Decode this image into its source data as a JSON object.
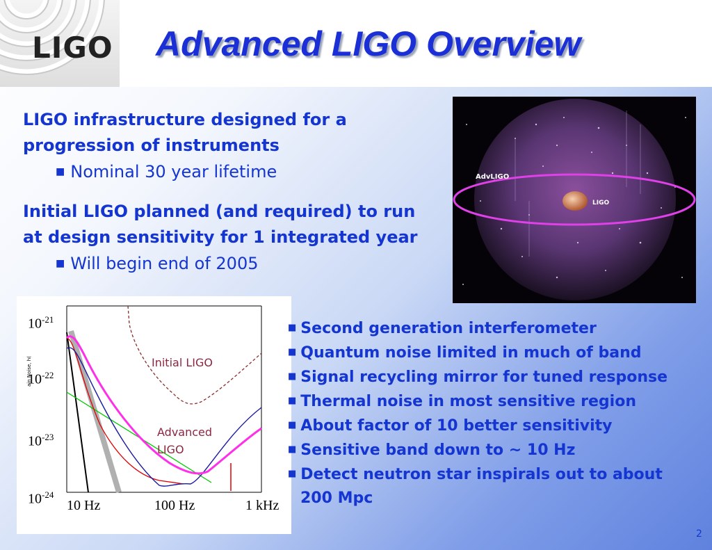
{
  "header": {
    "logo_text": "LIGO",
    "title": "Advanced LIGO Overview"
  },
  "block1": {
    "lead_line1": "LIGO infrastructure designed for a",
    "lead_line2": "progression of instruments",
    "sub": "Nominal 30 year lifetime"
  },
  "block2": {
    "lead_line1": "Initial LIGO planned (and required) to run",
    "lead_line2": "at design sensitivity for 1 integrated year",
    "sub": "Will begin end of 2005"
  },
  "cosmos": {
    "label_advligo": "AdvLIGO",
    "label_ligo": "LIGO"
  },
  "plot": {
    "y_base": "10",
    "y_exponents": [
      "-21",
      "-22",
      "-23",
      "-24"
    ],
    "x_ticks": [
      "10 Hz",
      "100 Hz",
      "1 kHz"
    ],
    "ylabel": "ain Noise, h(",
    "label_initial": "Initial LIGO",
    "label_advanced_line1": "Advanced",
    "label_advanced_line2": "LIGO",
    "colors": {
      "initial": "#8b2d2d",
      "advanced": "#ff2ee8",
      "seismic": "#b0b0b0",
      "quantum": "#1a1aa0",
      "thermal": "#00c800",
      "suspension": "#e00000"
    }
  },
  "bullets": [
    "Second generation interferometer",
    "Quantum noise limited in much of band",
    "Signal recycling mirror for tuned response",
    "Thermal noise in most sensitive region",
    "About factor of 10 better sensitivity",
    "Sensitive band down to ~ 10 Hz",
    "Detect neutron star inspirals out to about"
  ],
  "bullet_continuation": "200 Mpc",
  "page_number": "2",
  "colors": {
    "text_blue": "#1535d1",
    "title_blue": "#1a2fd6"
  }
}
